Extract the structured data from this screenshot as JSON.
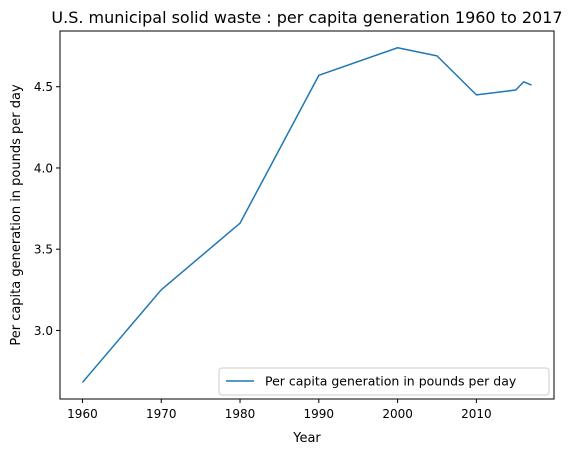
{
  "chart_data": {
    "type": "line",
    "title": "U.S. municipal solid waste : per capita generation 1960 to 2017",
    "xlabel": "Year",
    "ylabel": "Per capita generation in pounds per day",
    "xlim": [
      1957.15,
      2019.85
    ],
    "ylim": [
      2.578,
      4.843
    ],
    "x_ticks": [
      1960,
      1970,
      1980,
      1990,
      2000,
      2010
    ],
    "y_ticks": [
      3.0,
      3.5,
      4.0,
      4.5
    ],
    "grid": false,
    "legend_position": "lower right",
    "series": [
      {
        "name": "Per capita generation in pounds per day",
        "color": "#1f77b4",
        "x": [
          1960,
          1970,
          1980,
          1990,
          2000,
          2005,
          2010,
          2015,
          2016,
          2017
        ],
        "y": [
          2.68,
          3.25,
          3.66,
          4.57,
          4.74,
          4.69,
          4.45,
          4.48,
          4.53,
          4.51
        ]
      }
    ]
  }
}
